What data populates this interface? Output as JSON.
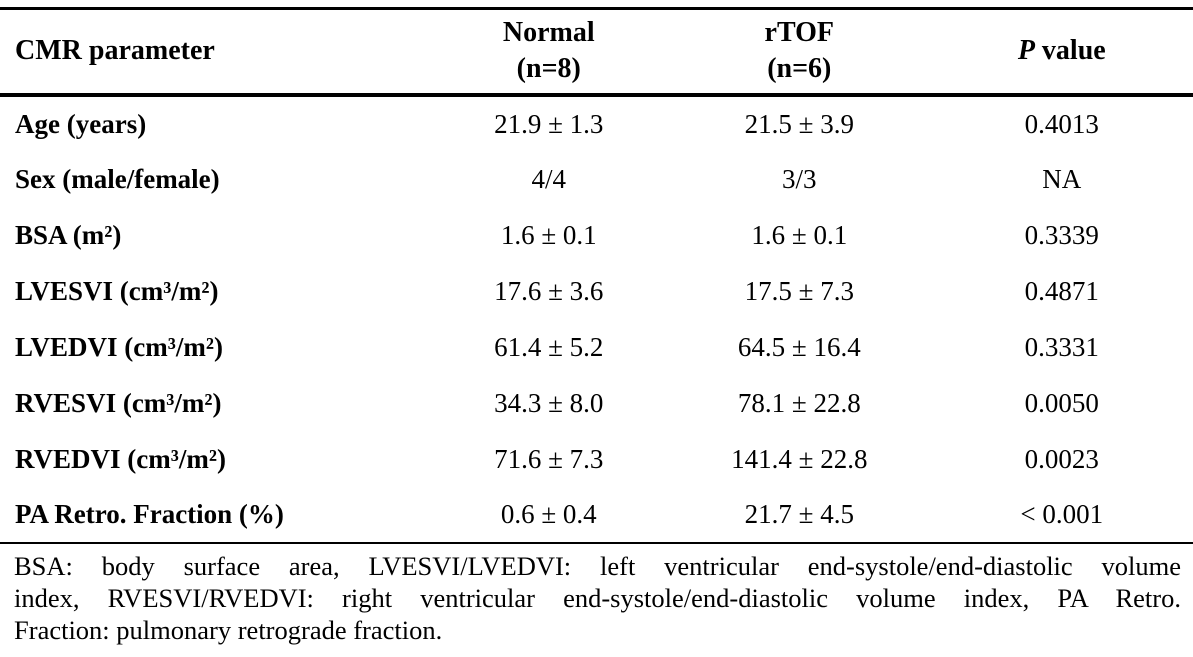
{
  "table": {
    "header": {
      "param": "CMR parameter",
      "normal_line1": "Normal",
      "normal_line2": "(n=8)",
      "rtof_line1": "rTOF",
      "rtof_line2": "(n=6)",
      "pvalue_italic": "P",
      "pvalue_rest": " value"
    },
    "rows": [
      {
        "parameter": "Age (years)",
        "normal": "21.9 ± 1.3",
        "rtof": "21.5 ± 3.9",
        "p_value": "0.4013"
      },
      {
        "parameter": "Sex (male/female)",
        "normal": "4/4",
        "rtof": "3/3",
        "p_value": "NA"
      },
      {
        "parameter": "BSA (m²)",
        "normal": "1.6 ± 0.1",
        "rtof": "1.6 ± 0.1",
        "p_value": "0.3339"
      },
      {
        "parameter": "LVESVI (cm³/m²)",
        "normal": "17.6 ± 3.6",
        "rtof": "17.5 ± 7.3",
        "p_value": "0.4871"
      },
      {
        "parameter": "LVEDVI (cm³/m²)",
        "normal": "61.4 ± 5.2",
        "rtof": "64.5 ± 16.4",
        "p_value": "0.3331"
      },
      {
        "parameter": "RVESVI (cm³/m²)",
        "normal": "34.3 ± 8.0",
        "rtof": "78.1 ± 22.8",
        "p_value": "0.0050"
      },
      {
        "parameter": "RVEDVI (cm³/m²)",
        "normal": "71.6 ± 7.3",
        "rtof": "141.4 ± 22.8",
        "p_value": "0.0023"
      },
      {
        "parameter": "PA Retro. Fraction (%)",
        "normal": "0.6 ± 0.4",
        "rtof": "21.7 ± 4.5",
        "p_value": "< 0.001"
      }
    ],
    "footnote_lines": [
      "BSA: body surface area, LVESVI/LVEDVI: left ventricular end-systole/end-diastolic volume",
      "index, RVESVI/RVEDVI: right ventricular end-systole/end-diastolic volume index, PA Retro.",
      "Fraction: pulmonary retrograde fraction."
    ]
  },
  "colors": {
    "text": "#000000",
    "border": "#000000",
    "background": "#ffffff"
  }
}
